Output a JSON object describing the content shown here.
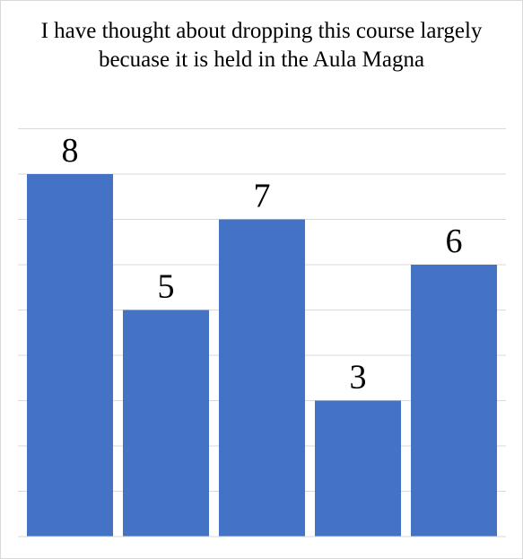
{
  "chart_data": {
    "type": "bar",
    "title": "I have thought about dropping this course largely becuase it is held in the Aula Magna",
    "categories": [
      "",
      "",
      "",
      "",
      ""
    ],
    "values": [
      8,
      5,
      7,
      3,
      6
    ],
    "ylim": [
      0,
      9
    ],
    "grid": true,
    "gridline_step": 1,
    "legend": "none",
    "data_labels": true,
    "bar_color": "#4472C4",
    "gridline_color": "#d9d9d9"
  }
}
